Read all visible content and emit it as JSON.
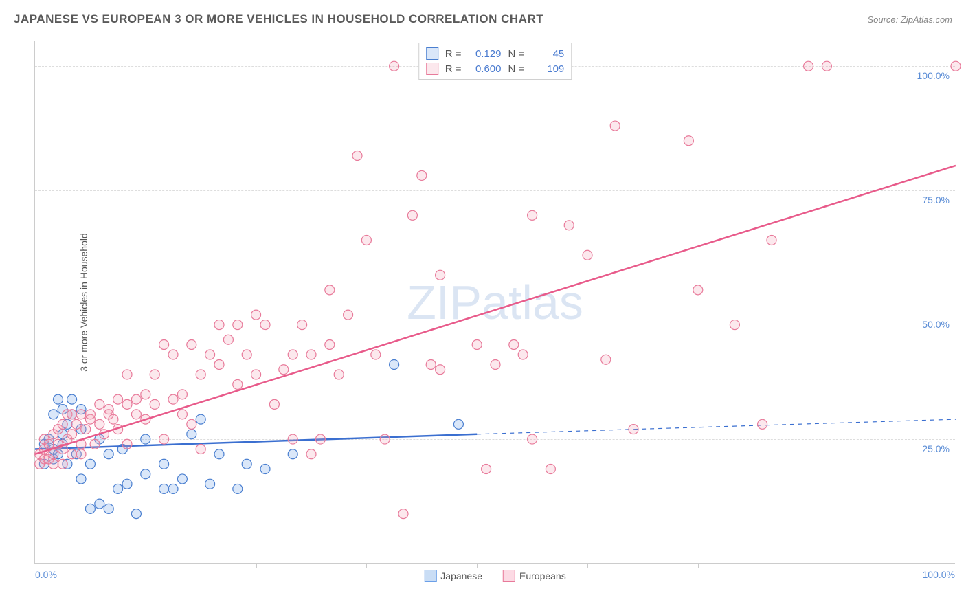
{
  "title": "JAPANESE VS EUROPEAN 3 OR MORE VEHICLES IN HOUSEHOLD CORRELATION CHART",
  "source": "Source: ZipAtlas.com",
  "watermark": "ZIPatlas",
  "y_axis_label": "3 or more Vehicles in Household",
  "chart": {
    "type": "scatter",
    "xlim": [
      0,
      100
    ],
    "ylim": [
      0,
      105
    ],
    "x_ticks_minor": [
      12,
      24,
      36,
      48,
      60,
      72,
      84,
      96
    ],
    "x_labels": {
      "min": "0.0%",
      "max": "100.0%"
    },
    "y_gridlines": [
      {
        "value": 25,
        "label": "25.0%"
      },
      {
        "value": 50,
        "label": "50.0%"
      },
      {
        "value": 75,
        "label": "75.0%"
      },
      {
        "value": 100,
        "label": "100.0%"
      }
    ],
    "background_color": "#ffffff",
    "grid_color": "#dddddd",
    "axis_color": "#cccccc",
    "label_color": "#5b8dd6",
    "marker_radius": 7,
    "marker_fill_opacity": 0.25,
    "marker_stroke_width": 1.2,
    "series": [
      {
        "key": "japanese",
        "label": "Japanese",
        "color": "#6b9fe8",
        "stroke": "#4a7fd0",
        "R": "0.129",
        "N": "45",
        "trend": {
          "x1": 0,
          "y1": 23,
          "x2": 48,
          "y2": 26,
          "ext_x2": 100,
          "ext_y2": 29,
          "dash_after": 48,
          "width": 2.5,
          "color": "#3b6fd0"
        },
        "points": [
          [
            1,
            24
          ],
          [
            1,
            20
          ],
          [
            1.5,
            25
          ],
          [
            2,
            23
          ],
          [
            2,
            21
          ],
          [
            2,
            30
          ],
          [
            2.5,
            22
          ],
          [
            2.5,
            33
          ],
          [
            3,
            24
          ],
          [
            3,
            31
          ],
          [
            3.5,
            20
          ],
          [
            3.5,
            28
          ],
          [
            4,
            30
          ],
          [
            4,
            33
          ],
          [
            4.5,
            22
          ],
          [
            5,
            17
          ],
          [
            5,
            31
          ],
          [
            6,
            11
          ],
          [
            6,
            20
          ],
          [
            7,
            12
          ],
          [
            7,
            25
          ],
          [
            8,
            11
          ],
          [
            8,
            22
          ],
          [
            9,
            15
          ],
          [
            9.5,
            23
          ],
          [
            10,
            16
          ],
          [
            11,
            10
          ],
          [
            12,
            18
          ],
          [
            12,
            25
          ],
          [
            14,
            15
          ],
          [
            14,
            20
          ],
          [
            15,
            15
          ],
          [
            16,
            17
          ],
          [
            17,
            26
          ],
          [
            18,
            29
          ],
          [
            19,
            16
          ],
          [
            20,
            22
          ],
          [
            22,
            15
          ],
          [
            23,
            20
          ],
          [
            25,
            19
          ],
          [
            28,
            22
          ],
          [
            39,
            40
          ],
          [
            46,
            28
          ],
          [
            3,
            26
          ],
          [
            5,
            27
          ]
        ]
      },
      {
        "key": "europeans",
        "label": "Europeans",
        "color": "#f5a3b8",
        "stroke": "#e87a9a",
        "R": "0.600",
        "N": "109",
        "trend": {
          "x1": 0,
          "y1": 22,
          "x2": 100,
          "y2": 80,
          "width": 2.5,
          "color": "#e85a8a"
        },
        "points": [
          [
            0.5,
            22
          ],
          [
            0.5,
            20
          ],
          [
            1,
            23
          ],
          [
            1,
            21
          ],
          [
            1,
            25
          ],
          [
            1.5,
            21
          ],
          [
            1.5,
            24
          ],
          [
            2,
            22
          ],
          [
            2,
            20
          ],
          [
            2,
            26
          ],
          [
            2.5,
            24
          ],
          [
            2.5,
            27
          ],
          [
            3,
            23
          ],
          [
            3,
            28
          ],
          [
            3,
            20
          ],
          [
            3.5,
            25
          ],
          [
            3.5,
            30
          ],
          [
            4,
            26
          ],
          [
            4,
            22
          ],
          [
            4,
            30
          ],
          [
            4.5,
            28
          ],
          [
            5,
            24
          ],
          [
            5,
            30
          ],
          [
            5,
            22
          ],
          [
            5.5,
            27
          ],
          [
            6,
            29
          ],
          [
            6,
            30
          ],
          [
            6.5,
            24
          ],
          [
            7,
            28
          ],
          [
            7,
            32
          ],
          [
            7.5,
            26
          ],
          [
            8,
            31
          ],
          [
            8,
            30
          ],
          [
            8.5,
            29
          ],
          [
            9,
            33
          ],
          [
            9,
            27
          ],
          [
            10,
            32
          ],
          [
            10,
            24
          ],
          [
            10,
            38
          ],
          [
            11,
            33
          ],
          [
            11,
            30
          ],
          [
            12,
            34
          ],
          [
            12,
            29
          ],
          [
            13,
            32
          ],
          [
            13,
            38
          ],
          [
            14,
            25
          ],
          [
            14,
            44
          ],
          [
            15,
            33
          ],
          [
            15,
            42
          ],
          [
            16,
            34
          ],
          [
            16,
            30
          ],
          [
            17,
            28
          ],
          [
            17,
            44
          ],
          [
            18,
            23
          ],
          [
            18,
            38
          ],
          [
            19,
            42
          ],
          [
            20,
            48
          ],
          [
            20,
            40
          ],
          [
            21,
            45
          ],
          [
            22,
            36
          ],
          [
            22,
            48
          ],
          [
            23,
            42
          ],
          [
            24,
            50
          ],
          [
            24,
            38
          ],
          [
            25,
            48
          ],
          [
            26,
            32
          ],
          [
            27,
            39
          ],
          [
            28,
            42
          ],
          [
            28,
            25
          ],
          [
            29,
            48
          ],
          [
            30,
            22
          ],
          [
            30,
            42
          ],
          [
            31,
            25
          ],
          [
            32,
            55
          ],
          [
            32,
            44
          ],
          [
            33,
            38
          ],
          [
            34,
            50
          ],
          [
            35,
            82
          ],
          [
            36,
            65
          ],
          [
            37,
            42
          ],
          [
            38,
            25
          ],
          [
            39,
            100
          ],
          [
            40,
            10
          ],
          [
            41,
            70
          ],
          [
            42,
            78
          ],
          [
            43,
            40
          ],
          [
            44,
            58
          ],
          [
            44,
            39
          ],
          [
            48,
            44
          ],
          [
            49,
            19
          ],
          [
            50,
            40
          ],
          [
            52,
            44
          ],
          [
            53,
            42
          ],
          [
            54,
            70
          ],
          [
            54,
            25
          ],
          [
            56,
            19
          ],
          [
            58,
            68
          ],
          [
            60,
            62
          ],
          [
            62,
            41
          ],
          [
            63,
            88
          ],
          [
            65,
            27
          ],
          [
            71,
            85
          ],
          [
            72,
            55
          ],
          [
            76,
            48
          ],
          [
            79,
            28
          ],
          [
            80,
            65
          ],
          [
            84,
            100
          ],
          [
            86,
            100
          ],
          [
            100,
            100
          ]
        ]
      }
    ]
  },
  "bottom_legend": [
    {
      "label": "Japanese",
      "fill": "#c9ddf5",
      "stroke": "#6b9fe8"
    },
    {
      "label": "Europeans",
      "fill": "#fcdae4",
      "stroke": "#e87a9a"
    }
  ]
}
